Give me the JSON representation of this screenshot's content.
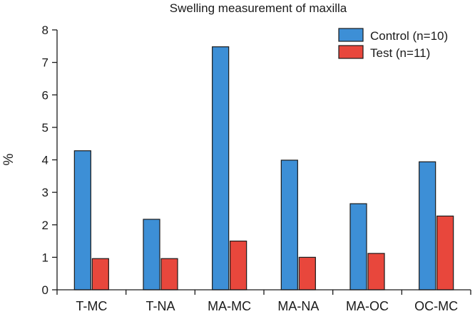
{
  "chart_data": {
    "type": "bar",
    "title": "Swelling measurement of maxilla",
    "xlabel": "",
    "ylabel": "%",
    "ylim": [
      0,
      8
    ],
    "yticks": [
      "0",
      "1",
      "2",
      "3",
      "4",
      "5",
      "6",
      "7",
      "8"
    ],
    "categories": [
      "T-MC",
      "T-NA",
      "MA-MC",
      "MA-NA",
      "MA-OC",
      "OC-MC"
    ],
    "series": [
      {
        "name": "Control (n=10)",
        "color": "#3d8fd6",
        "values": [
          4.28,
          2.17,
          7.48,
          3.99,
          2.65,
          3.94
        ]
      },
      {
        "name": "Test (n=11)",
        "color": "#e8473c",
        "values": [
          0.96,
          0.96,
          1.5,
          1.0,
          1.12,
          2.27
        ]
      }
    ],
    "legend_position": "top-right",
    "grid": false
  }
}
